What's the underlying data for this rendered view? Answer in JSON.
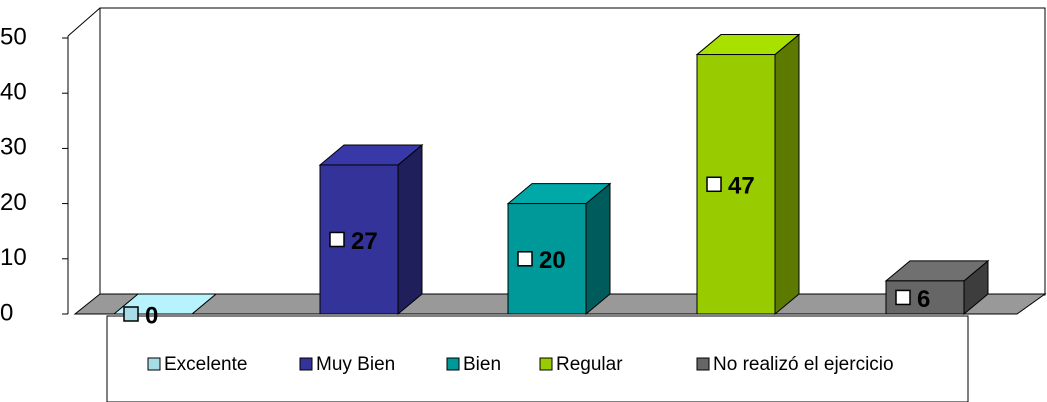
{
  "chart_data": {
    "type": "bar3d",
    "categories": [
      "Excelente",
      "Muy Bien",
      "Bien",
      "Regular",
      "No realizó el ejercicio"
    ],
    "values": [
      0,
      27,
      20,
      47,
      6
    ],
    "colors": [
      "#a6dde6",
      "#333399",
      "#009999",
      "#99cc00",
      "#666666"
    ],
    "ylim": [
      0,
      50
    ],
    "yticks": [
      0,
      10,
      20,
      30,
      40,
      50
    ],
    "legend": "bottom"
  }
}
